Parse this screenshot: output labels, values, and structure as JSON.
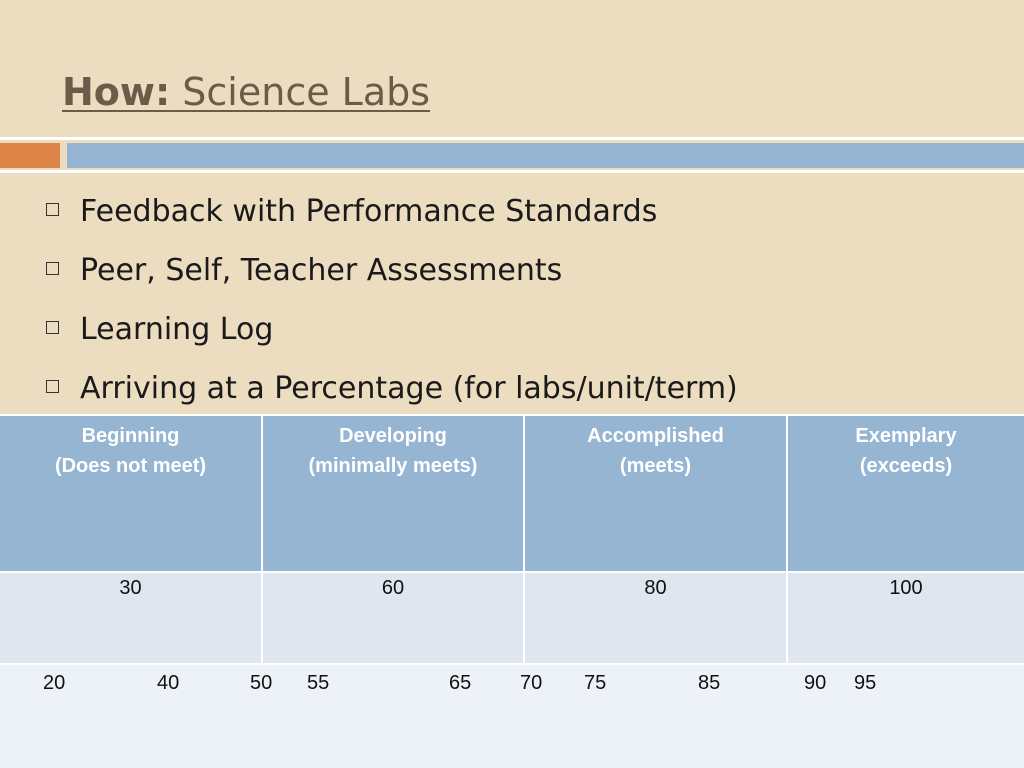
{
  "slide": {
    "title_bold": "How:",
    "title_rest": " Science Labs",
    "bullets": [
      "Feedback with Performance Standards",
      "Peer, Self, Teacher Assessments",
      "Learning Log",
      "Arriving at a Percentage (for labs/unit/term)"
    ]
  },
  "table": {
    "headers": [
      {
        "line1": "Beginning",
        "line2": "(Does not meet)"
      },
      {
        "line1": "Developing",
        "line2": "(minimally meets)"
      },
      {
        "line1": "Accomplished",
        "line2": "(meets)"
      },
      {
        "line1": "Exemplary",
        "line2": "(exceeds)"
      }
    ],
    "values": [
      "30",
      "60",
      "80",
      "100"
    ],
    "scale": [
      "20",
      "40",
      "50",
      "55",
      "65",
      "70",
      "75",
      "85",
      "90",
      "95"
    ]
  },
  "colors": {
    "background": "#ecdcc0",
    "accent_orange": "#dc8546",
    "accent_blue": "#95b5d3",
    "title": "#6e5a48"
  }
}
